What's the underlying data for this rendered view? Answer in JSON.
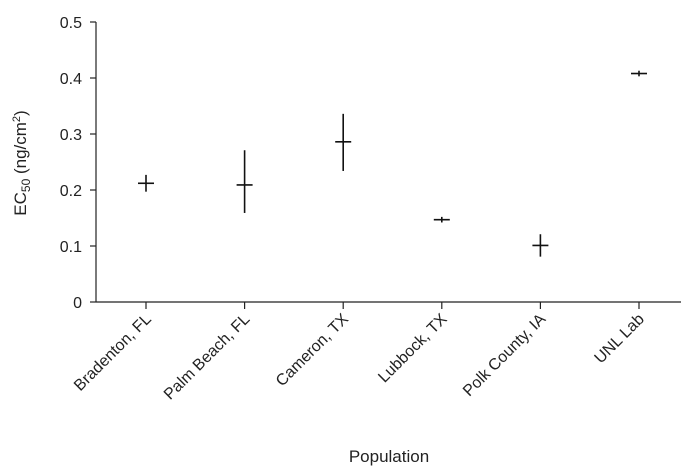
{
  "chart_data": {
    "type": "scatter",
    "title": "",
    "xlabel": "Population",
    "ylabel_main": "EC",
    "ylabel_sub": "50",
    "ylabel_unit": " (ng/cm",
    "ylabel_sup": "2",
    "ylabel_close": ")",
    "ylim": [
      0,
      0.5
    ],
    "yticks": [
      "0",
      "0.1",
      "0.2",
      "0.3",
      "0.4",
      "0.5"
    ],
    "grid": false,
    "legend": "none",
    "categories": [
      "Bradenton, FL",
      "Palm Beach, FL",
      "Cameron, TX",
      "Lubbock, TX",
      "Polk County, IA",
      "UNL Lab"
    ],
    "series": [
      {
        "values": [
          0.212,
          0.209,
          0.286,
          0.147,
          0.101,
          0.408
        ],
        "lower": [
          0.197,
          0.159,
          0.234,
          0.142,
          0.081,
          0.403
        ],
        "upper": [
          0.227,
          0.271,
          0.336,
          0.152,
          0.121,
          0.413
        ],
        "color": "#111111"
      }
    ]
  }
}
